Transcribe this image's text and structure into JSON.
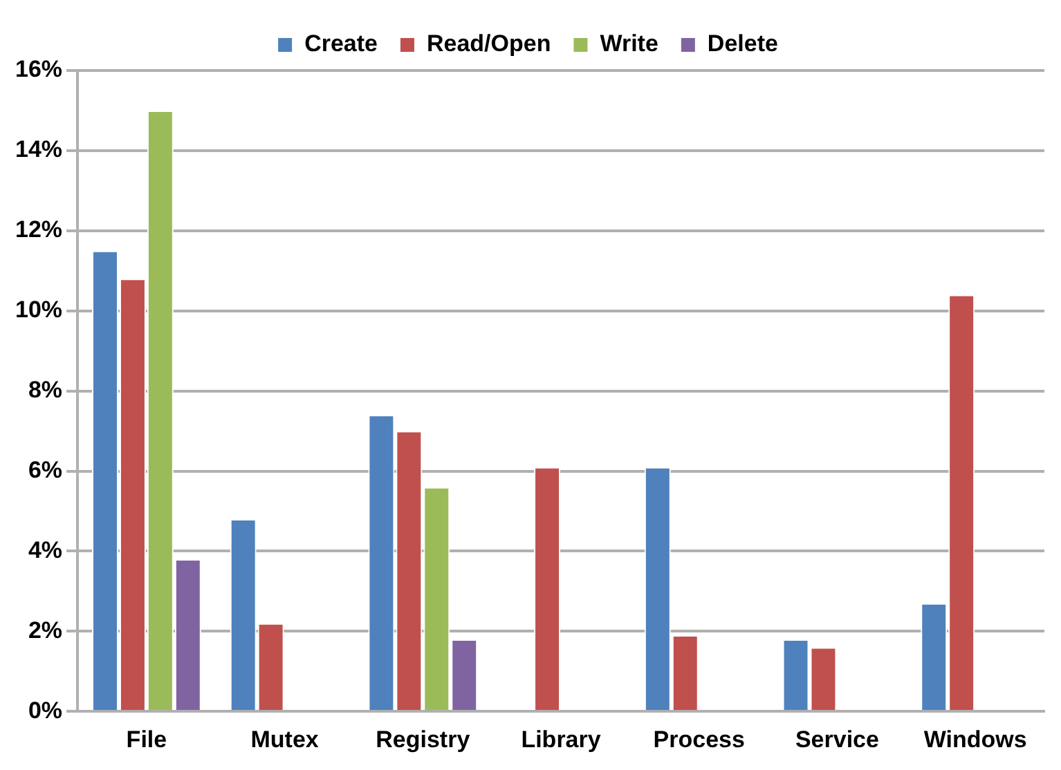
{
  "chart_data": {
    "type": "bar",
    "categories": [
      "File",
      "Mutex",
      "Registry",
      "Library",
      "Process",
      "Service",
      "Windows"
    ],
    "series": [
      {
        "name": "Create",
        "color": "#4f81bd",
        "values": [
          11.5,
          4.8,
          7.4,
          null,
          6.1,
          1.8,
          2.7
        ]
      },
      {
        "name": "Read/Open",
        "color": "#c0504d",
        "values": [
          10.8,
          2.2,
          7.0,
          6.1,
          1.9,
          1.6,
          10.4
        ]
      },
      {
        "name": "Write",
        "color": "#9bbb59",
        "values": [
          15.0,
          null,
          5.6,
          null,
          null,
          null,
          null
        ]
      },
      {
        "name": "Delete",
        "color": "#8064a2",
        "values": [
          3.8,
          null,
          1.8,
          null,
          null,
          null,
          null
        ]
      }
    ],
    "ylim": [
      0,
      16
    ],
    "yticks": [
      {
        "value": 0,
        "label": "0%"
      },
      {
        "value": 2,
        "label": "2%"
      },
      {
        "value": 4,
        "label": "4%"
      },
      {
        "value": 6,
        "label": "6%"
      },
      {
        "value": 8,
        "label": "8%"
      },
      {
        "value": 10,
        "label": "10%"
      },
      {
        "value": 12,
        "label": "12%"
      },
      {
        "value": 14,
        "label": "14%"
      },
      {
        "value": 16,
        "label": "16%"
      }
    ],
    "grid": "y",
    "legend": "top"
  }
}
